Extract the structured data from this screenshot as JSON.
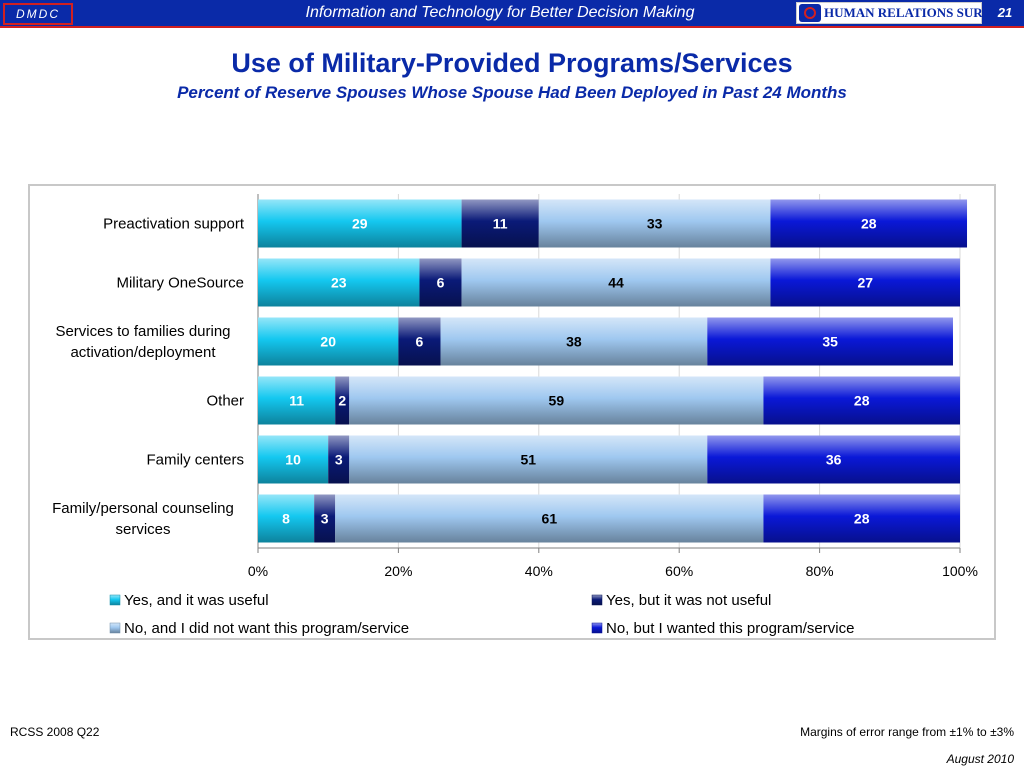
{
  "header": {
    "logo_text": "DMDC",
    "tagline": "Information and Technology for Better Decision Making",
    "brand_logo_text": "HUMAN RELATIONS SURVEYS",
    "page_number": "21"
  },
  "footer": {
    "source": "RCSS 2008 Q22",
    "margin_of_error": "Margins of error range from ±1% to ±3%",
    "date": "August 2010"
  },
  "colors": {
    "header_bg": "#0a2aa8",
    "header_accent": "#d12020",
    "title": "#0a2aa8"
  },
  "chart_data": {
    "type": "bar",
    "orientation": "horizontal",
    "stacked": "percent",
    "title": "Use of Military-Provided Programs/Services",
    "subtitle": "Percent of Reserve Spouses Whose Spouse Had Been Deployed in Past 24 Months",
    "xlabel": "",
    "ylabel": "",
    "xlim": [
      0,
      100
    ],
    "x_ticks": [
      "0%",
      "20%",
      "40%",
      "60%",
      "80%",
      "100%"
    ],
    "grid": true,
    "legend_position": "bottom",
    "categories": [
      "Preactivation support",
      "Military OneSource",
      "Services to families during activation/deployment",
      "Other",
      "Family centers",
      "Family/personal counseling services"
    ],
    "series": [
      {
        "name": "Yes, and it was useful",
        "color": "#14c8f0",
        "label_color": "#ffffff",
        "values": [
          29,
          23,
          20,
          11,
          10,
          8
        ]
      },
      {
        "name": "Yes, but it was not useful",
        "color": "#0a1a78",
        "label_color": "#ffffff",
        "values": [
          11,
          6,
          6,
          2,
          3,
          3
        ]
      },
      {
        "name": "No, and I did not want this program/service",
        "color": "#9fc8f0",
        "label_color": "#000000",
        "values": [
          33,
          44,
          38,
          59,
          51,
          61
        ]
      },
      {
        "name": "No, but I wanted this program/service",
        "color": "#0a18d8",
        "label_color": "#ffffff",
        "values": [
          28,
          27,
          35,
          28,
          36,
          28
        ]
      }
    ]
  }
}
